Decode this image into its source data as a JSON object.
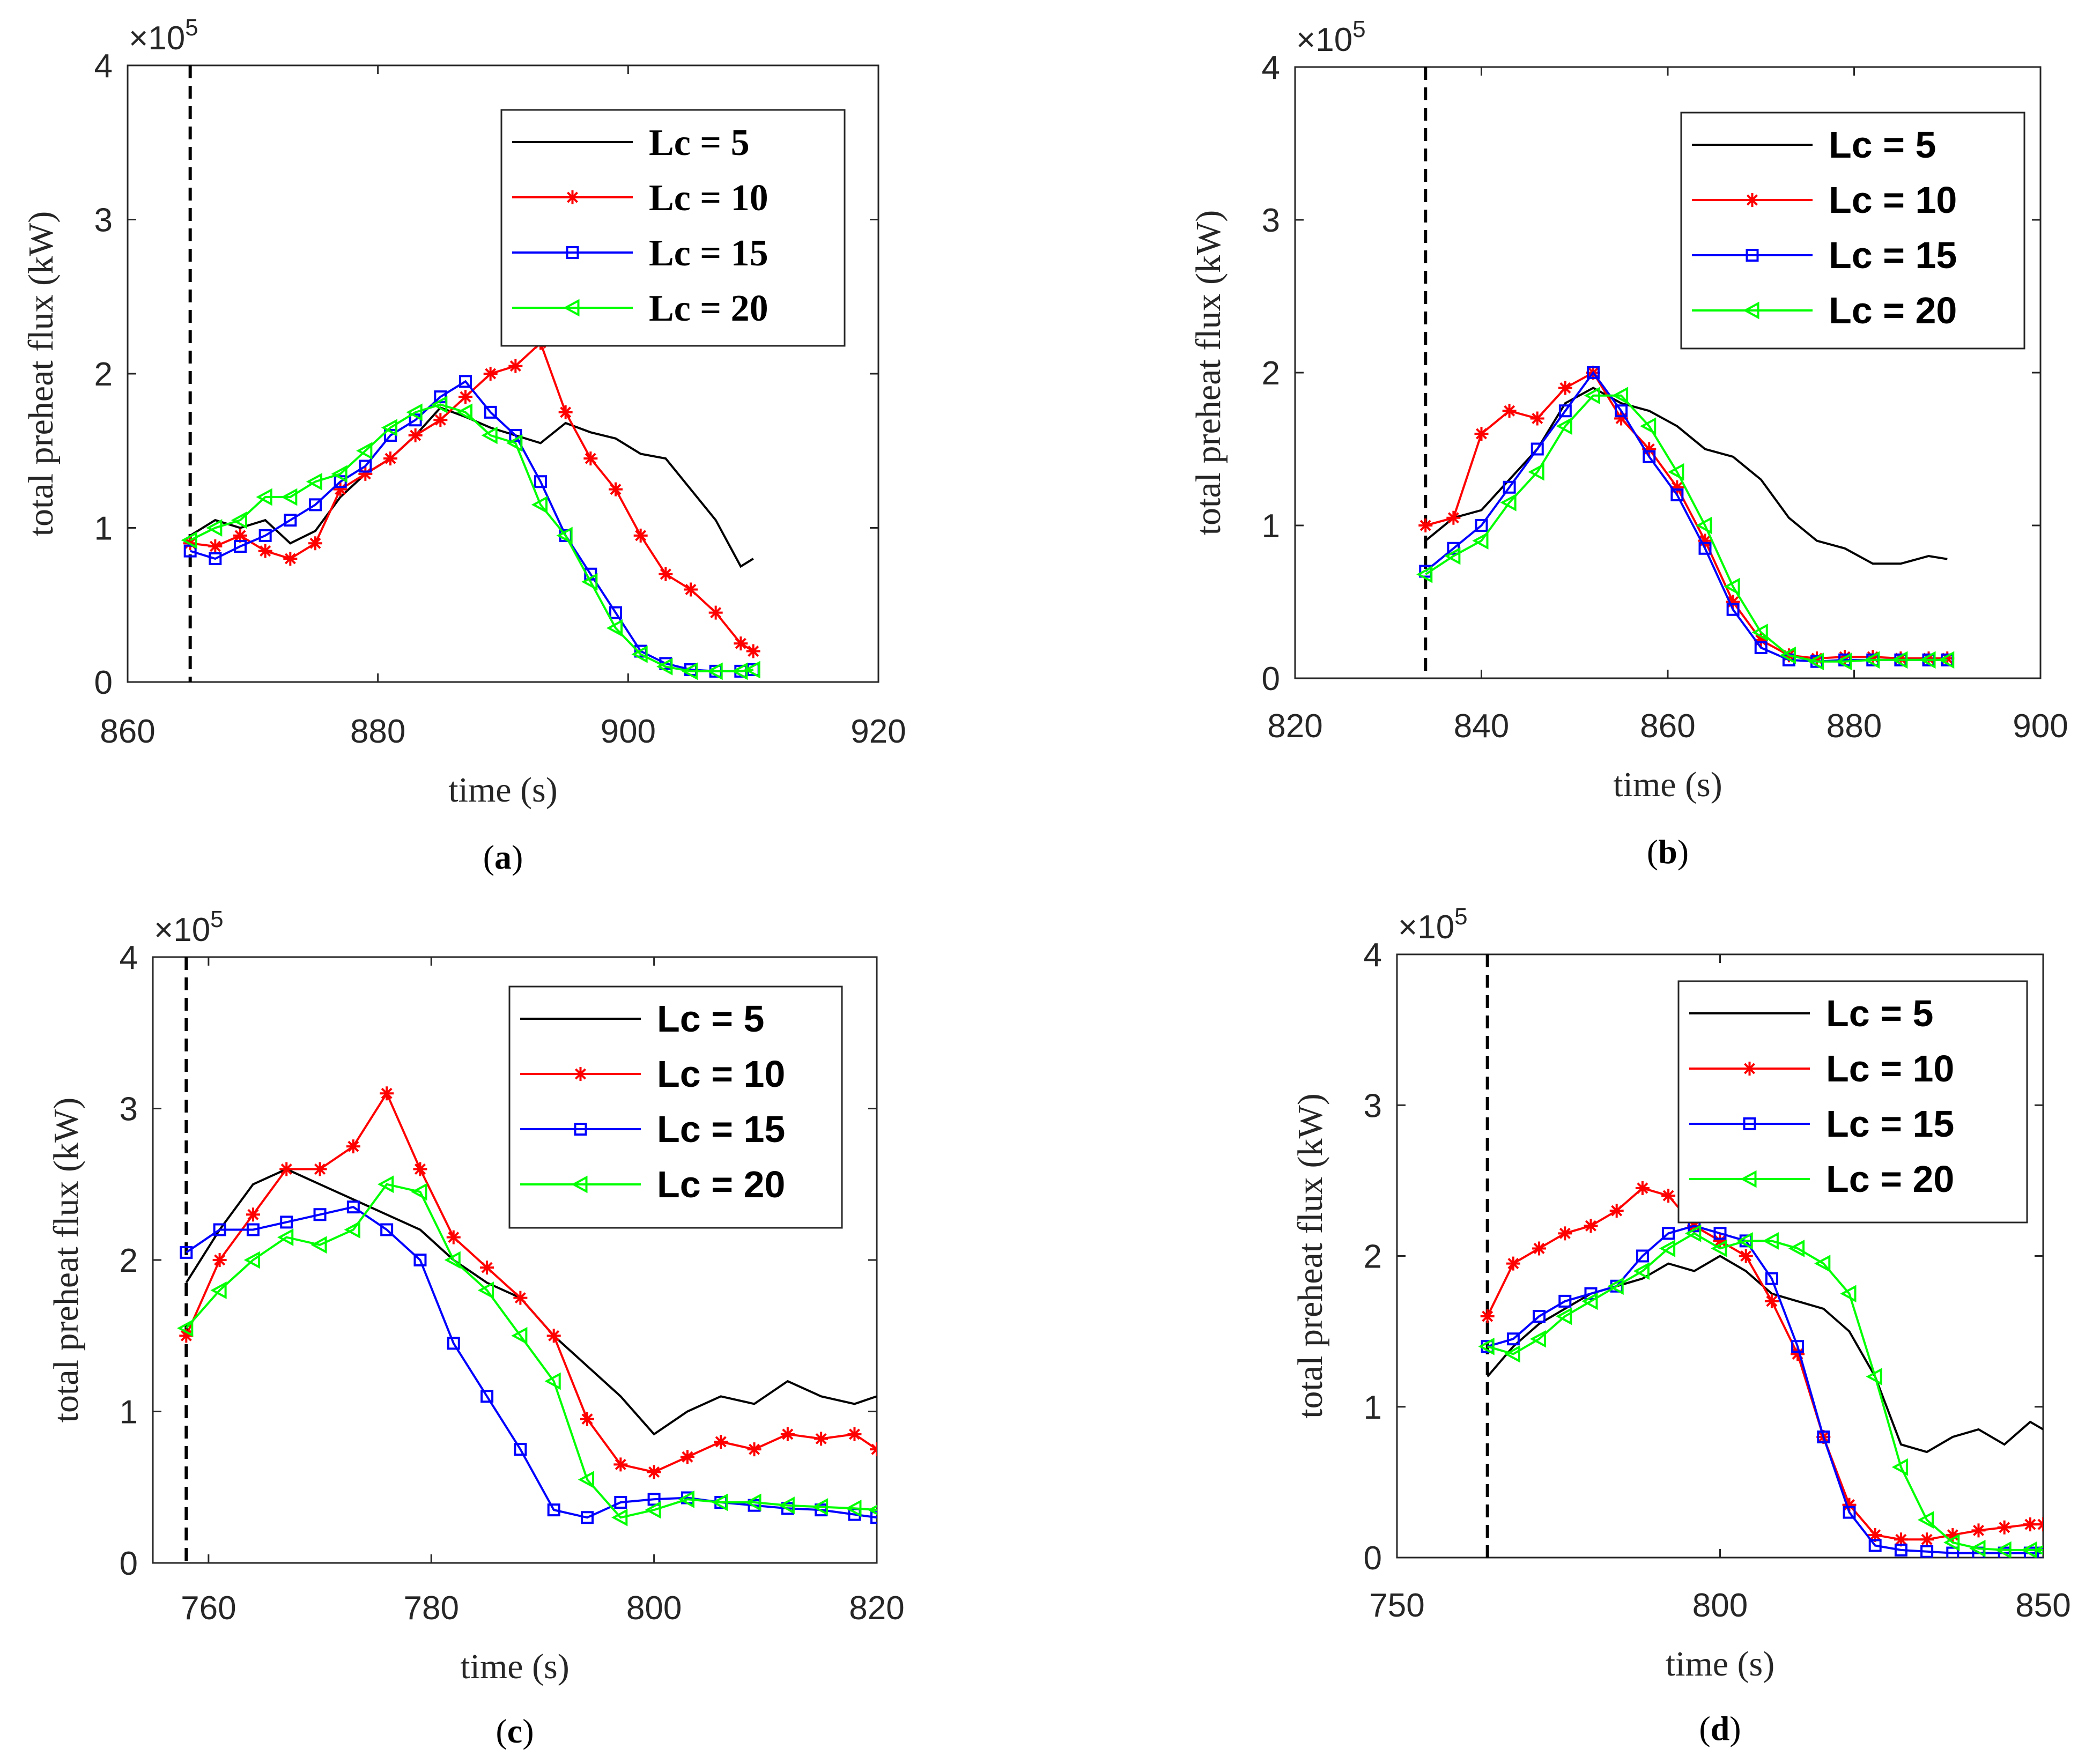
{
  "chart_data": [
    {
      "type": "line",
      "panel_label": "(a)",
      "xlabel": "time (s)",
      "ylabel": "total preheat flux (kW)",
      "y_exponent": "×10",
      "y_exponent_power": "5",
      "xlim": [
        860,
        920
      ],
      "ylim": [
        0,
        4
      ],
      "xticks": [
        "860",
        "880",
        "900",
        "920"
      ],
      "yticks": [
        "0",
        "1",
        "2",
        "3",
        "4"
      ],
      "vline_x": 865,
      "legend_font": "serif",
      "series": [
        {
          "name": "Lc = 5",
          "color": "#000000",
          "marker": "none",
          "x": [
            865,
            867,
            869,
            871,
            873,
            875,
            877,
            879,
            881,
            883,
            885,
            887,
            889,
            891,
            893,
            895,
            897,
            899,
            901,
            903,
            905,
            907,
            909,
            910
          ],
          "y": [
            0.95,
            1.05,
            1.0,
            1.05,
            0.9,
            0.98,
            1.2,
            1.35,
            1.45,
            1.6,
            1.78,
            1.72,
            1.65,
            1.6,
            1.55,
            1.68,
            1.62,
            1.58,
            1.48,
            1.45,
            1.25,
            1.05,
            0.75,
            0.8
          ]
        },
        {
          "name": "Lc = 10",
          "color": "#ff0000",
          "marker": "star",
          "x": [
            865,
            867,
            869,
            871,
            873,
            875,
            877,
            879,
            881,
            883,
            885,
            887,
            889,
            891,
            893,
            895,
            897,
            899,
            901,
            903,
            905,
            907,
            909,
            910
          ],
          "y": [
            0.9,
            0.88,
            0.95,
            0.85,
            0.8,
            0.9,
            1.25,
            1.35,
            1.45,
            1.6,
            1.7,
            1.85,
            2.0,
            2.05,
            2.2,
            1.75,
            1.45,
            1.25,
            0.95,
            0.7,
            0.6,
            0.45,
            0.25,
            0.2
          ]
        },
        {
          "name": "Lc = 15",
          "color": "#0000ff",
          "marker": "square",
          "x": [
            865,
            867,
            869,
            871,
            873,
            875,
            877,
            879,
            881,
            883,
            885,
            887,
            889,
            891,
            893,
            895,
            897,
            899,
            901,
            903,
            905,
            907,
            909,
            910
          ],
          "y": [
            0.85,
            0.8,
            0.88,
            0.95,
            1.05,
            1.15,
            1.3,
            1.4,
            1.6,
            1.7,
            1.85,
            1.95,
            1.75,
            1.6,
            1.3,
            0.95,
            0.7,
            0.45,
            0.2,
            0.12,
            0.08,
            0.07,
            0.07,
            0.08
          ]
        },
        {
          "name": "Lc = 20",
          "color": "#00ff00",
          "marker": "triangle-left",
          "x": [
            865,
            867,
            869,
            871,
            873,
            875,
            877,
            879,
            881,
            883,
            885,
            887,
            889,
            891,
            893,
            895,
            897,
            899,
            901,
            903,
            905,
            907,
            909,
            910
          ],
          "y": [
            0.92,
            1.0,
            1.05,
            1.2,
            1.2,
            1.3,
            1.35,
            1.5,
            1.65,
            1.75,
            1.8,
            1.75,
            1.6,
            1.55,
            1.15,
            0.95,
            0.65,
            0.35,
            0.18,
            0.1,
            0.07,
            0.07,
            0.07,
            0.08
          ]
        }
      ]
    },
    {
      "type": "line",
      "panel_label": "(b)",
      "xlabel": "time (s)",
      "ylabel": "total preheat flux (kW)",
      "y_exponent": "×10",
      "y_exponent_power": "5",
      "xlim": [
        820,
        900
      ],
      "ylim": [
        0,
        4
      ],
      "xticks": [
        "820",
        "840",
        "860",
        "880",
        "900"
      ],
      "yticks": [
        "0",
        "1",
        "2",
        "3",
        "4"
      ],
      "vline_x": 834,
      "legend_font": "sans",
      "series": [
        {
          "name": "Lc = 5",
          "color": "#000000",
          "marker": "none",
          "x": [
            834,
            837,
            840,
            843,
            846,
            849,
            852,
            855,
            858,
            861,
            864,
            867,
            870,
            873,
            876,
            879,
            882,
            885,
            888,
            890
          ],
          "y": [
            0.9,
            1.05,
            1.1,
            1.3,
            1.5,
            1.8,
            1.9,
            1.8,
            1.75,
            1.65,
            1.5,
            1.45,
            1.3,
            1.05,
            0.9,
            0.85,
            0.75,
            0.75,
            0.8,
            0.78
          ]
        },
        {
          "name": "Lc = 10",
          "color": "#ff0000",
          "marker": "star",
          "x": [
            834,
            837,
            840,
            843,
            846,
            849,
            852,
            855,
            858,
            861,
            864,
            867,
            870,
            873,
            876,
            879,
            882,
            885,
            888,
            890
          ],
          "y": [
            1.0,
            1.05,
            1.6,
            1.75,
            1.7,
            1.9,
            2.0,
            1.7,
            1.5,
            1.25,
            0.9,
            0.5,
            0.25,
            0.15,
            0.13,
            0.14,
            0.14,
            0.13,
            0.13,
            0.13
          ]
        },
        {
          "name": "Lc = 15",
          "color": "#0000ff",
          "marker": "square",
          "x": [
            834,
            837,
            840,
            843,
            846,
            849,
            852,
            855,
            858,
            861,
            864,
            867,
            870,
            873,
            876,
            879,
            882,
            885,
            888,
            890
          ],
          "y": [
            0.7,
            0.85,
            1.0,
            1.25,
            1.5,
            1.75,
            2.0,
            1.75,
            1.45,
            1.2,
            0.85,
            0.45,
            0.2,
            0.12,
            0.11,
            0.12,
            0.12,
            0.12,
            0.12,
            0.12
          ]
        },
        {
          "name": "Lc = 20",
          "color": "#00ff00",
          "marker": "triangle-left",
          "x": [
            834,
            837,
            840,
            843,
            846,
            849,
            852,
            855,
            858,
            861,
            864,
            867,
            870,
            873,
            876,
            879,
            882,
            885,
            888,
            890
          ],
          "y": [
            0.68,
            0.8,
            0.9,
            1.15,
            1.35,
            1.65,
            1.85,
            1.85,
            1.65,
            1.35,
            1.0,
            0.6,
            0.3,
            0.15,
            0.11,
            0.11,
            0.12,
            0.12,
            0.12,
            0.12
          ]
        }
      ]
    },
    {
      "type": "line",
      "panel_label": "(c)",
      "xlabel": "time (s)",
      "ylabel": "total preheat flux (kW)",
      "y_exponent": "×10",
      "y_exponent_power": "5",
      "xlim": [
        755,
        820
      ],
      "ylim": [
        0,
        4
      ],
      "xticks": [
        "760",
        "780",
        "800",
        "820"
      ],
      "yticks": [
        "0",
        "1",
        "2",
        "3",
        "4"
      ],
      "vline_x": 758,
      "legend_font": "sans",
      "series": [
        {
          "name": "Lc = 5",
          "color": "#000000",
          "marker": "none",
          "x": [
            758,
            761,
            764,
            767,
            770,
            773,
            776,
            779,
            782,
            785,
            788,
            791,
            794,
            797,
            800,
            803,
            806,
            809,
            812,
            815,
            818,
            820
          ],
          "y": [
            1.85,
            2.2,
            2.5,
            2.6,
            2.5,
            2.4,
            2.3,
            2.2,
            2.0,
            1.85,
            1.75,
            1.5,
            1.3,
            1.1,
            0.85,
            1.0,
            1.1,
            1.05,
            1.2,
            1.1,
            1.05,
            1.1
          ]
        },
        {
          "name": "Lc = 10",
          "color": "#ff0000",
          "marker": "star",
          "x": [
            758,
            761,
            764,
            767,
            770,
            773,
            776,
            779,
            782,
            785,
            788,
            791,
            794,
            797,
            800,
            803,
            806,
            809,
            812,
            815,
            818,
            820
          ],
          "y": [
            1.5,
            2.0,
            2.3,
            2.6,
            2.6,
            2.75,
            3.1,
            2.6,
            2.15,
            1.95,
            1.75,
            1.5,
            0.95,
            0.65,
            0.6,
            0.7,
            0.8,
            0.75,
            0.85,
            0.82,
            0.85,
            0.75
          ]
        },
        {
          "name": "Lc = 15",
          "color": "#0000ff",
          "marker": "square",
          "x": [
            758,
            761,
            764,
            767,
            770,
            773,
            776,
            779,
            782,
            785,
            788,
            791,
            794,
            797,
            800,
            803,
            806,
            809,
            812,
            815,
            818,
            820
          ],
          "y": [
            2.05,
            2.2,
            2.2,
            2.25,
            2.3,
            2.35,
            2.2,
            2.0,
            1.45,
            1.1,
            0.75,
            0.35,
            0.3,
            0.4,
            0.42,
            0.43,
            0.4,
            0.38,
            0.36,
            0.35,
            0.32,
            0.3
          ]
        },
        {
          "name": "Lc = 20",
          "color": "#00ff00",
          "marker": "triangle-left",
          "x": [
            758,
            761,
            764,
            767,
            770,
            773,
            776,
            779,
            782,
            785,
            788,
            791,
            794,
            797,
            800,
            803,
            806,
            809,
            812,
            815,
            818,
            820
          ],
          "y": [
            1.55,
            1.8,
            2.0,
            2.15,
            2.1,
            2.2,
            2.5,
            2.45,
            2.0,
            1.8,
            1.5,
            1.2,
            0.55,
            0.3,
            0.35,
            0.42,
            0.4,
            0.4,
            0.38,
            0.37,
            0.36,
            0.35
          ]
        }
      ]
    },
    {
      "type": "line",
      "panel_label": "(d)",
      "xlabel": "time (s)",
      "ylabel": "total preheat flux (kW)",
      "y_exponent": "×10",
      "y_exponent_power": "5",
      "xlim": [
        750,
        850
      ],
      "ylim": [
        0,
        4
      ],
      "xticks": [
        "750",
        "800",
        "850"
      ],
      "yticks": [
        "0",
        "1",
        "2",
        "3",
        "4"
      ],
      "vline_x": 764,
      "legend_font": "sans",
      "series": [
        {
          "name": "Lc = 5",
          "color": "#000000",
          "marker": "none",
          "x": [
            764,
            768,
            772,
            776,
            780,
            784,
            788,
            792,
            796,
            800,
            804,
            808,
            812,
            816,
            820,
            824,
            828,
            832,
            836,
            840,
            844,
            848,
            850
          ],
          "y": [
            1.2,
            1.4,
            1.55,
            1.65,
            1.75,
            1.8,
            1.85,
            1.95,
            1.9,
            2.0,
            1.9,
            1.75,
            1.7,
            1.65,
            1.5,
            1.2,
            0.75,
            0.7,
            0.8,
            0.85,
            0.75,
            0.9,
            0.85
          ]
        },
        {
          "name": "Lc = 10",
          "color": "#ff0000",
          "marker": "star",
          "x": [
            764,
            768,
            772,
            776,
            780,
            784,
            788,
            792,
            796,
            800,
            804,
            808,
            812,
            816,
            820,
            824,
            828,
            832,
            836,
            840,
            844,
            848,
            850
          ],
          "y": [
            1.6,
            1.95,
            2.05,
            2.15,
            2.2,
            2.3,
            2.45,
            2.4,
            2.2,
            2.1,
            2.0,
            1.7,
            1.35,
            0.8,
            0.35,
            0.15,
            0.12,
            0.12,
            0.15,
            0.18,
            0.2,
            0.22,
            0.22
          ]
        },
        {
          "name": "Lc = 15",
          "color": "#0000ff",
          "marker": "square",
          "x": [
            764,
            768,
            772,
            776,
            780,
            784,
            788,
            792,
            796,
            800,
            804,
            808,
            812,
            816,
            820,
            824,
            828,
            832,
            836,
            840,
            844,
            848,
            850
          ],
          "y": [
            1.4,
            1.45,
            1.6,
            1.7,
            1.75,
            1.8,
            2.0,
            2.15,
            2.2,
            2.15,
            2.1,
            1.85,
            1.4,
            0.8,
            0.3,
            0.08,
            0.05,
            0.04,
            0.03,
            0.03,
            0.03,
            0.03,
            0.03
          ]
        },
        {
          "name": "Lc = 20",
          "color": "#00ff00",
          "marker": "triangle-left",
          "x": [
            764,
            768,
            772,
            776,
            780,
            784,
            788,
            792,
            796,
            800,
            804,
            808,
            812,
            816,
            820,
            824,
            828,
            832,
            836,
            840,
            844,
            848,
            850
          ],
          "y": [
            1.4,
            1.35,
            1.45,
            1.6,
            1.7,
            1.8,
            1.9,
            2.05,
            2.15,
            2.05,
            2.1,
            2.1,
            2.05,
            1.95,
            1.75,
            1.2,
            0.6,
            0.25,
            0.1,
            0.06,
            0.05,
            0.05,
            0.05
          ]
        }
      ]
    }
  ]
}
